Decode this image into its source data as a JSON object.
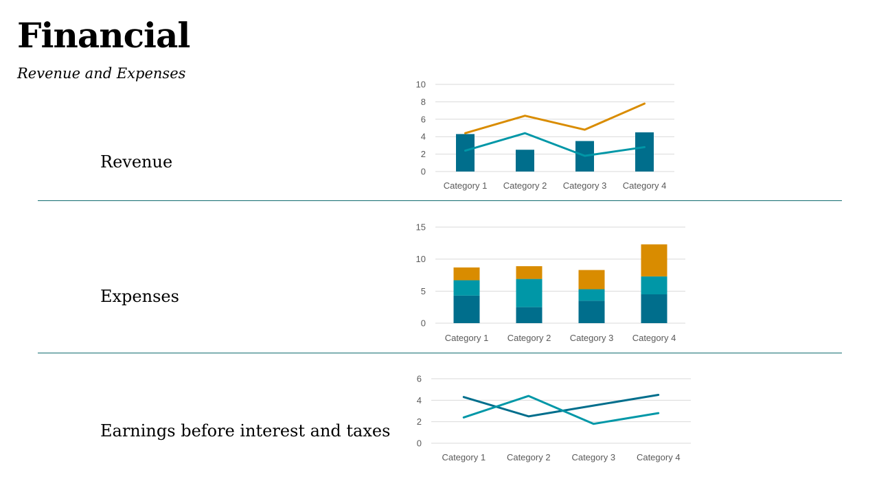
{
  "slide": {
    "title": "Financial",
    "subtitle": "Revenue and Expenses"
  },
  "rows": [
    {
      "label": "Revenue"
    },
    {
      "label": "Expenses"
    },
    {
      "label": "Earnings before interest and taxes"
    }
  ],
  "colors": {
    "dark_teal": "#006e8c",
    "teal": "#0097a7",
    "orange": "#d98c00",
    "grid": "#d9d9d9",
    "divider": "#0f6b6e"
  },
  "chart_data": [
    {
      "type": "bar",
      "categories": [
        "Category 1",
        "Category 2",
        "Category 3",
        "Category 4"
      ],
      "ylim": [
        0,
        10
      ],
      "yticks": [
        0,
        2,
        4,
        6,
        8,
        10
      ],
      "grid": true,
      "bars": [
        {
          "values": [
            4.3,
            2.5,
            3.5,
            4.5
          ],
          "color": "#006e8c"
        }
      ],
      "lines": [
        {
          "values": [
            2.4,
            4.4,
            1.8,
            2.8
          ],
          "color": "#0097a7"
        },
        {
          "values": [
            4.4,
            6.4,
            4.8,
            7.8
          ],
          "color": "#d98c00"
        }
      ]
    },
    {
      "type": "bar",
      "stacked": true,
      "categories": [
        "Category 1",
        "Category 2",
        "Category 3",
        "Category 4"
      ],
      "ylim": [
        0,
        15
      ],
      "yticks": [
        0,
        5,
        10,
        15
      ],
      "grid": true,
      "series": [
        {
          "values": [
            4.3,
            2.5,
            3.5,
            4.5
          ],
          "color": "#006e8c"
        },
        {
          "values": [
            2.4,
            4.4,
            1.8,
            2.8
          ],
          "color": "#0097a7"
        },
        {
          "values": [
            2.0,
            2.0,
            3.0,
            5.0
          ],
          "color": "#d98c00"
        }
      ]
    },
    {
      "type": "line",
      "categories": [
        "Category 1",
        "Category 2",
        "Category 3",
        "Category 4"
      ],
      "ylim": [
        0,
        6
      ],
      "yticks": [
        0,
        2,
        4,
        6
      ],
      "grid": true,
      "series": [
        {
          "values": [
            4.3,
            2.5,
            3.5,
            4.5
          ],
          "color": "#006e8c"
        },
        {
          "values": [
            2.4,
            4.4,
            1.8,
            2.8
          ],
          "color": "#0097a7"
        }
      ]
    }
  ]
}
